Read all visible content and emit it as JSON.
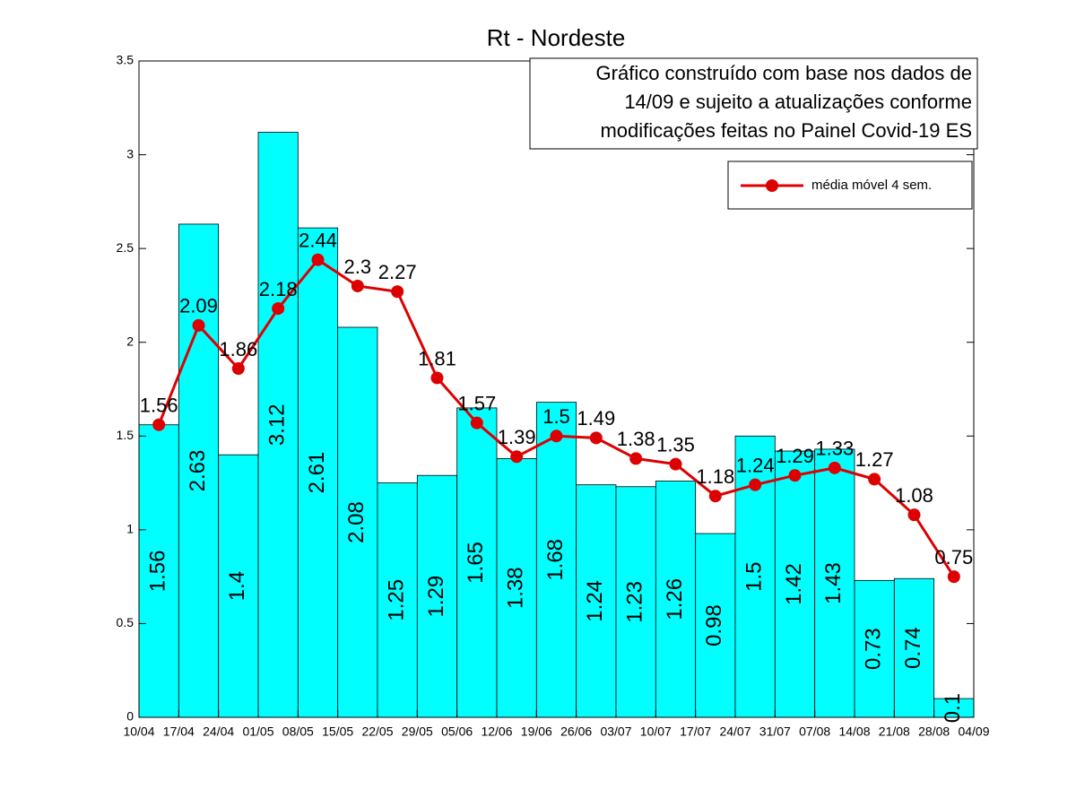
{
  "chart_data": {
    "type": "bar",
    "title": "Rt - Nordeste",
    "annotation": [
      "Gráfico construído com base nos dados de",
      "14/09 e sujeito a atualizações conforme",
      "modificações feitas no Painel Covid-19 ES"
    ],
    "values": [
      1.56,
      2.63,
      1.4,
      3.12,
      2.61,
      2.08,
      1.25,
      1.29,
      1.65,
      1.38,
      1.68,
      1.24,
      1.23,
      1.26,
      0.98,
      1.5,
      1.42,
      1.43,
      0.73,
      0.74,
      0.1
    ],
    "color": "#00ffff",
    "series": [
      {
        "name": "média móvel 4 sem.",
        "color": "#dd0000",
        "values": [
          1.56,
          2.09,
          1.86,
          2.18,
          2.44,
          2.3,
          2.27,
          1.81,
          1.57,
          1.39,
          1.5,
          1.49,
          1.38,
          1.35,
          1.18,
          1.24,
          1.29,
          1.33,
          1.27,
          1.08,
          0.75
        ]
      }
    ],
    "xlim": [
      0,
      21
    ],
    "xticks": [
      {
        "value": 0,
        "label": "10/04"
      },
      {
        "value": 1,
        "label": "17/04"
      },
      {
        "value": 2,
        "label": "24/04"
      },
      {
        "value": 3,
        "label": "01/05"
      },
      {
        "value": 4,
        "label": "08/05"
      },
      {
        "value": 5,
        "label": "15/05"
      },
      {
        "value": 6,
        "label": "22/05"
      },
      {
        "value": 7,
        "label": "29/05"
      },
      {
        "value": 8,
        "label": "05/06"
      },
      {
        "value": 9,
        "label": "12/06"
      },
      {
        "value": 10,
        "label": "19/06"
      },
      {
        "value": 11,
        "label": "26/06"
      },
      {
        "value": 12,
        "label": "03/07"
      },
      {
        "value": 13,
        "label": "10/07"
      },
      {
        "value": 14,
        "label": "17/07"
      },
      {
        "value": 15,
        "label": "24/07"
      },
      {
        "value": 16,
        "label": "31/07"
      },
      {
        "value": 17,
        "label": "07/08"
      },
      {
        "value": 18,
        "label": "14/08"
      },
      {
        "value": 19,
        "label": "21/08"
      },
      {
        "value": 20,
        "label": "28/08"
      },
      {
        "value": 21,
        "label": "04/09"
      }
    ],
    "ylim": [
      0,
      3.5
    ],
    "yticks": [
      0,
      0.5,
      1,
      1.5,
      2,
      2.5,
      3,
      3.5
    ],
    "grid": false,
    "legend": "upper right"
  }
}
